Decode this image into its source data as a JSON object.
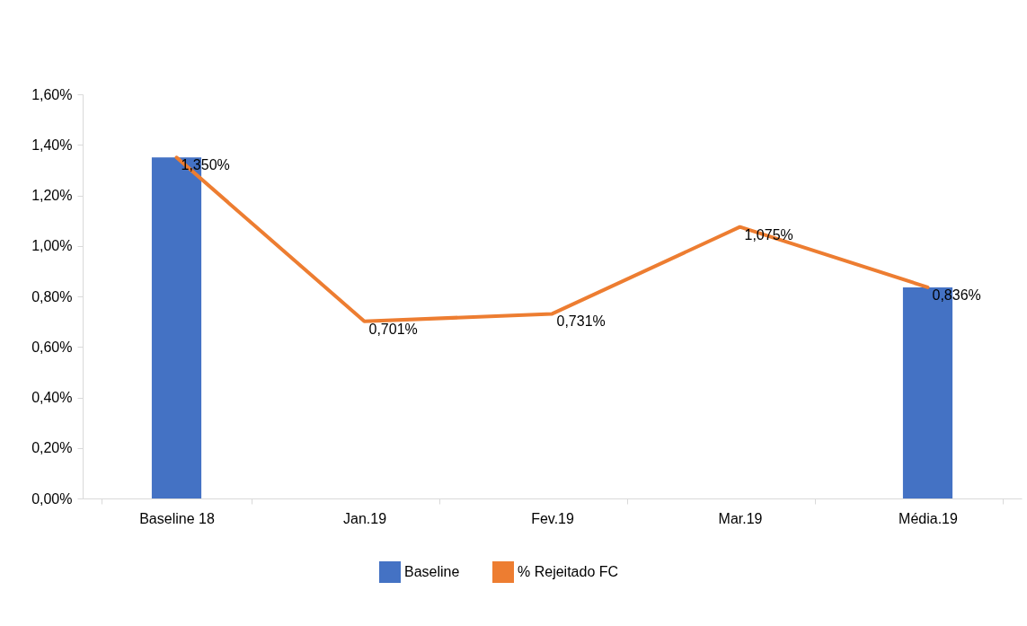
{
  "chart_data": {
    "type": "bar",
    "categories": [
      "Baseline 18",
      "Jan.19",
      "Fev.19",
      "Mar.19",
      "Média.19"
    ],
    "series": [
      {
        "name": "Baseline",
        "color": "#4472c4",
        "values": [
          1.35,
          null,
          null,
          null,
          0.836
        ]
      },
      {
        "name": "% Rejeitado FC",
        "type": "line",
        "color": "#ed7d31",
        "values": [
          1.35,
          0.701,
          0.731,
          1.075,
          0.836
        ],
        "value_labels": [
          "1,350%",
          "0,701%",
          "0,731%",
          "1,075%",
          "0,836%"
        ]
      }
    ],
    "ylim": [
      0,
      1.6
    ],
    "yticks": [
      {
        "value": 0,
        "label": "0,00%"
      },
      {
        "value": 0.2,
        "label": "0,20%"
      },
      {
        "value": 0.4,
        "label": "0,40%"
      },
      {
        "value": 0.6,
        "label": "0,60%"
      },
      {
        "value": 0.8,
        "label": "0,80%"
      },
      {
        "value": 1.0,
        "label": "1,00%"
      },
      {
        "value": 1.2,
        "label": "1,20%"
      },
      {
        "value": 1.4,
        "label": "1,40%"
      },
      {
        "value": 1.6,
        "label": "1,60%"
      }
    ],
    "grid": false,
    "legend": "bottom",
    "line_style": "solid"
  }
}
